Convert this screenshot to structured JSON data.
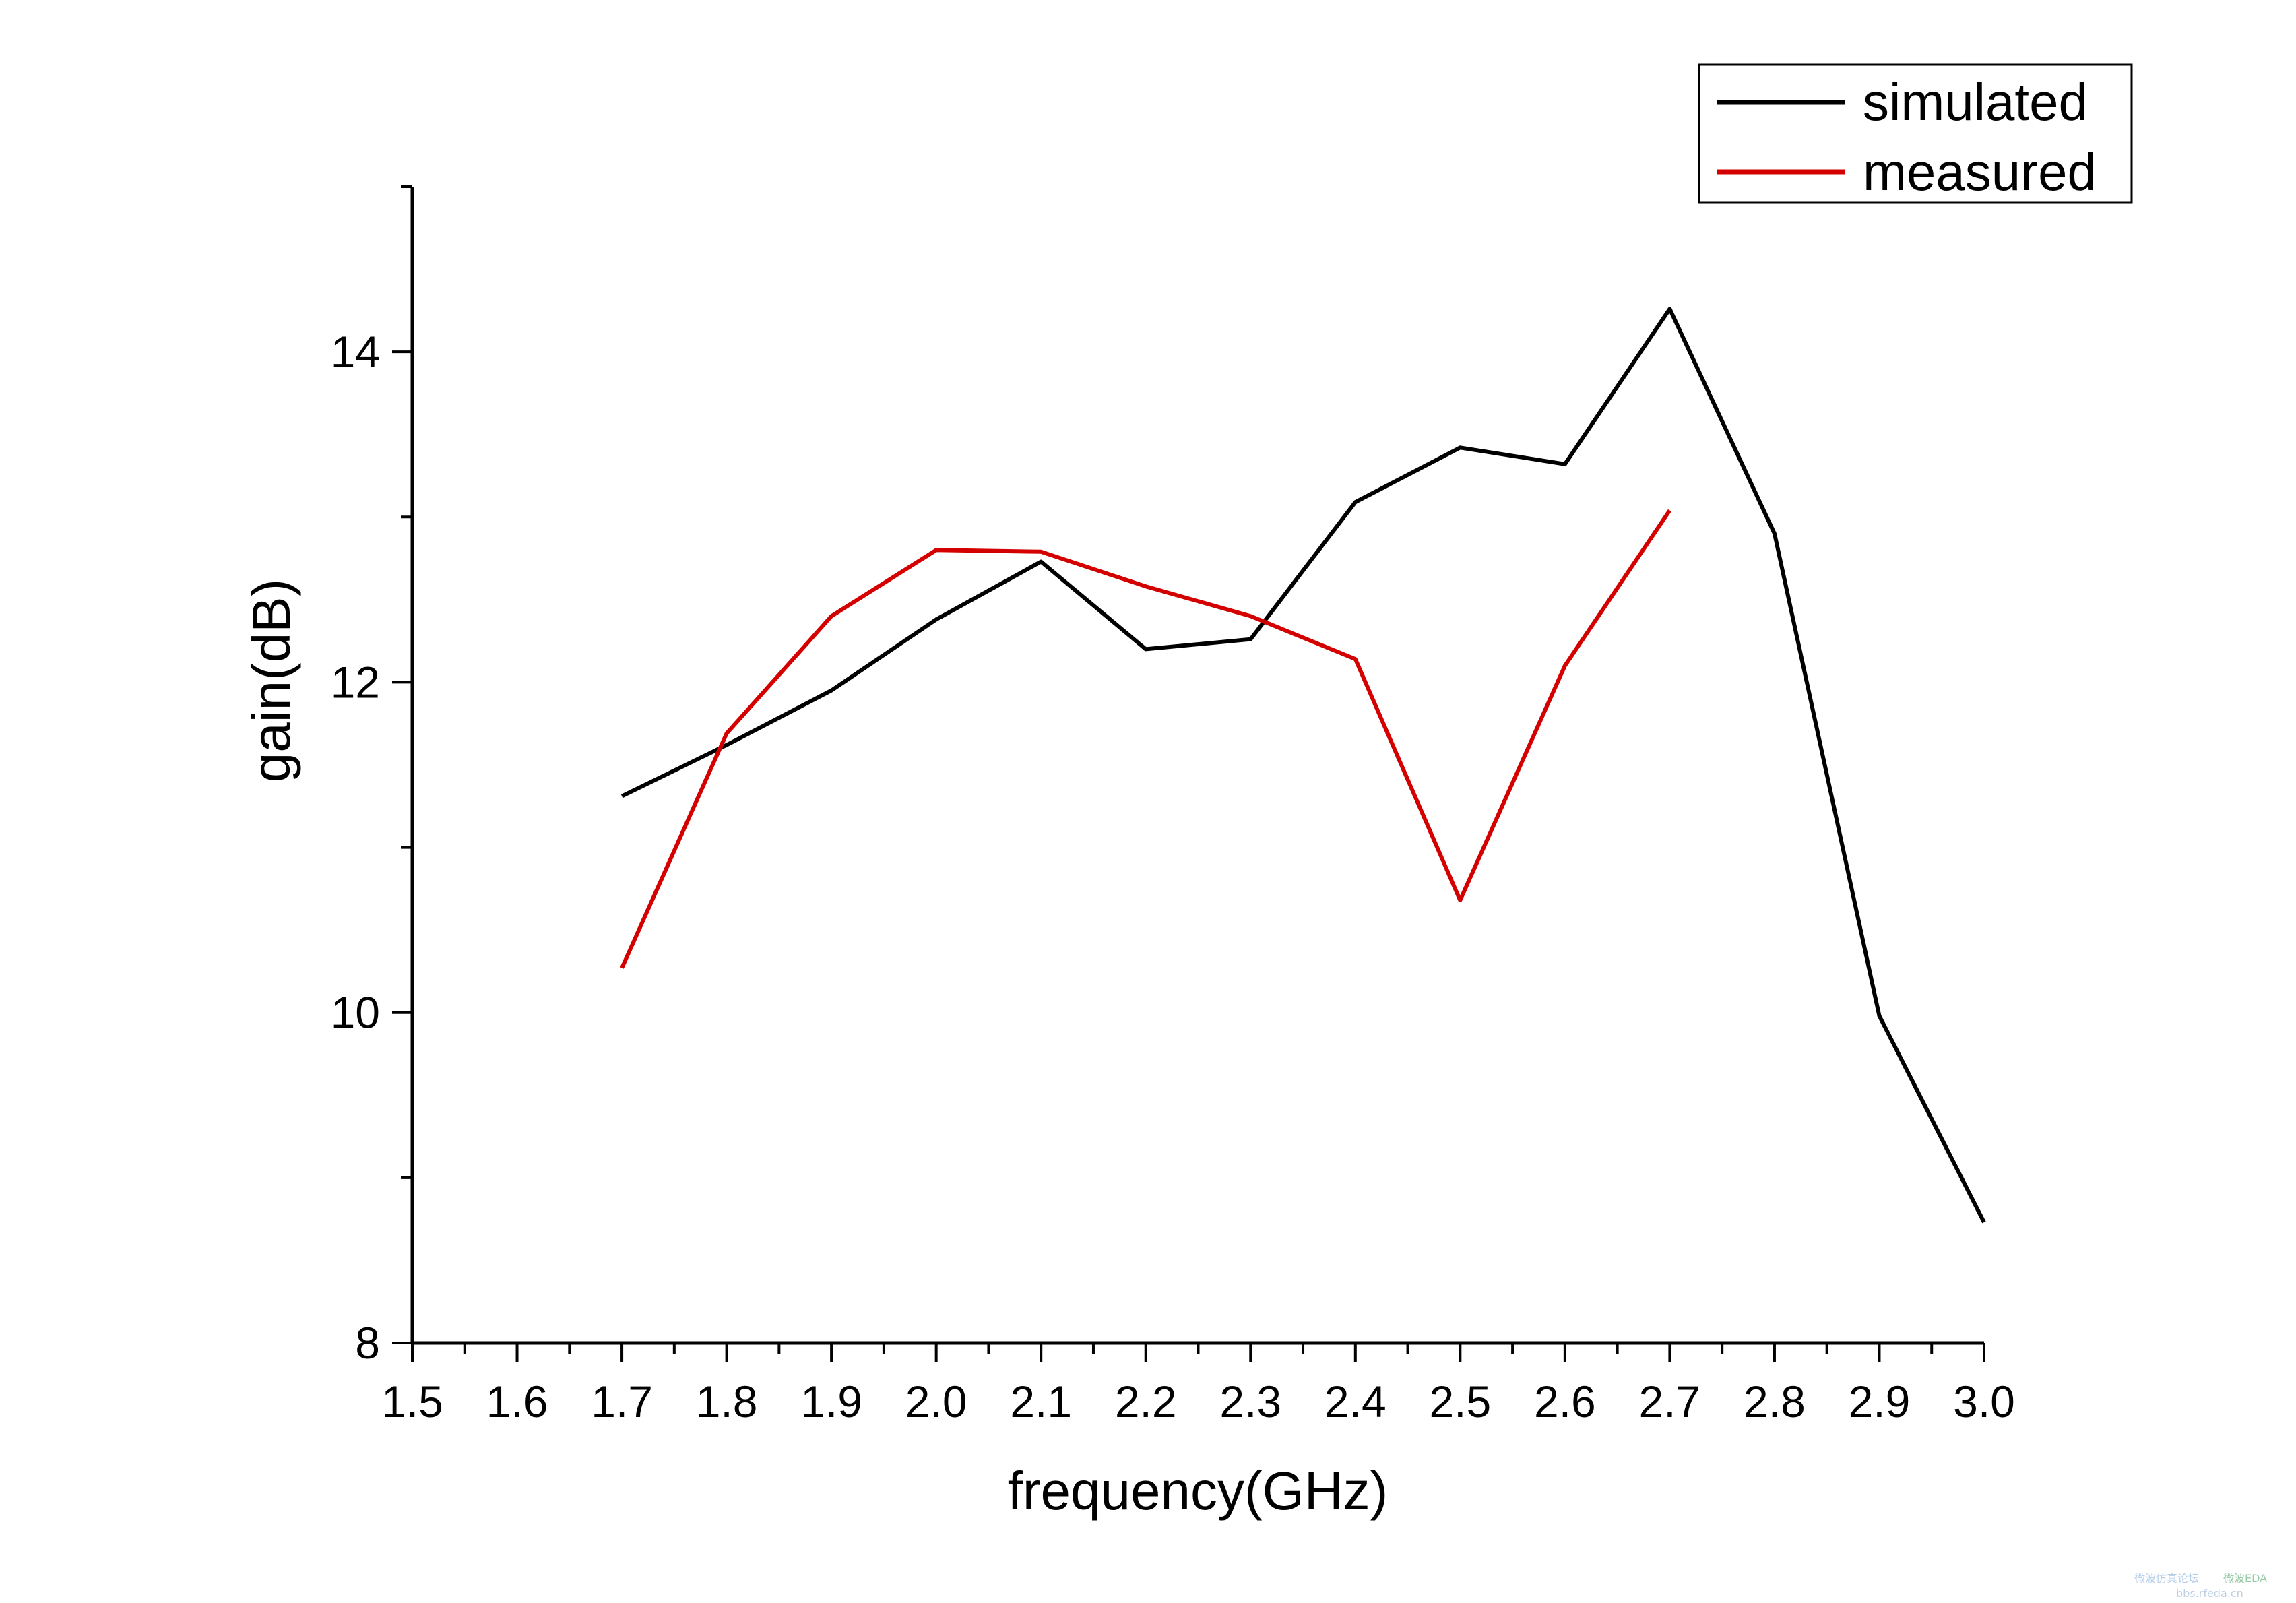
{
  "chart_data": {
    "type": "line",
    "xlabel": "frequency(GHz)",
    "ylabel": "gain(dB)",
    "xlim": [
      1.5,
      3.0
    ],
    "ylim": [
      8,
      15
    ],
    "x_ticks": [
      1.5,
      1.6,
      1.7,
      1.8,
      1.9,
      2.0,
      2.1,
      2.2,
      2.3,
      2.4,
      2.5,
      2.6,
      2.7,
      2.8,
      2.9,
      3.0
    ],
    "x_tick_labels": [
      "1.5",
      "1.6",
      "1.7",
      "1.8",
      "1.9",
      "2.0",
      "2.1",
      "2.2",
      "2.3",
      "2.4",
      "2.5",
      "2.6",
      "2.7",
      "2.8",
      "2.9",
      "3.0"
    ],
    "y_major_ticks": [
      8,
      10,
      12,
      14
    ],
    "y_major_labels": [
      "8",
      "10",
      "12",
      "14"
    ],
    "y_minor_ticks": [
      9,
      11,
      13,
      15
    ],
    "x_minor_step": 0.05,
    "grid": false,
    "legend_position": "top-right",
    "series": [
      {
        "name": "simulated",
        "color": "#000000",
        "x": [
          1.7,
          1.8,
          1.9,
          2.0,
          2.1,
          2.2,
          2.3,
          2.4,
          2.5,
          2.6,
          2.7,
          2.8,
          2.9,
          3.0
        ],
        "y": [
          11.31,
          11.62,
          11.95,
          12.38,
          12.73,
          12.2,
          12.26,
          13.09,
          13.42,
          13.32,
          14.26,
          12.9,
          9.98,
          8.73
        ]
      },
      {
        "name": "measured",
        "color": "#d40000",
        "x": [
          1.7,
          1.8,
          1.9,
          2.0,
          2.1,
          2.2,
          2.3,
          2.4,
          2.5,
          2.6,
          2.7
        ],
        "y": [
          10.27,
          11.69,
          12.4,
          12.8,
          12.79,
          12.58,
          12.4,
          12.14,
          10.68,
          12.1,
          13.04
        ]
      }
    ]
  },
  "watermark": {
    "left_text": "微波仿真论坛",
    "right_text": "微波EDA",
    "url_text": "bbs.rfeda.cn"
  }
}
